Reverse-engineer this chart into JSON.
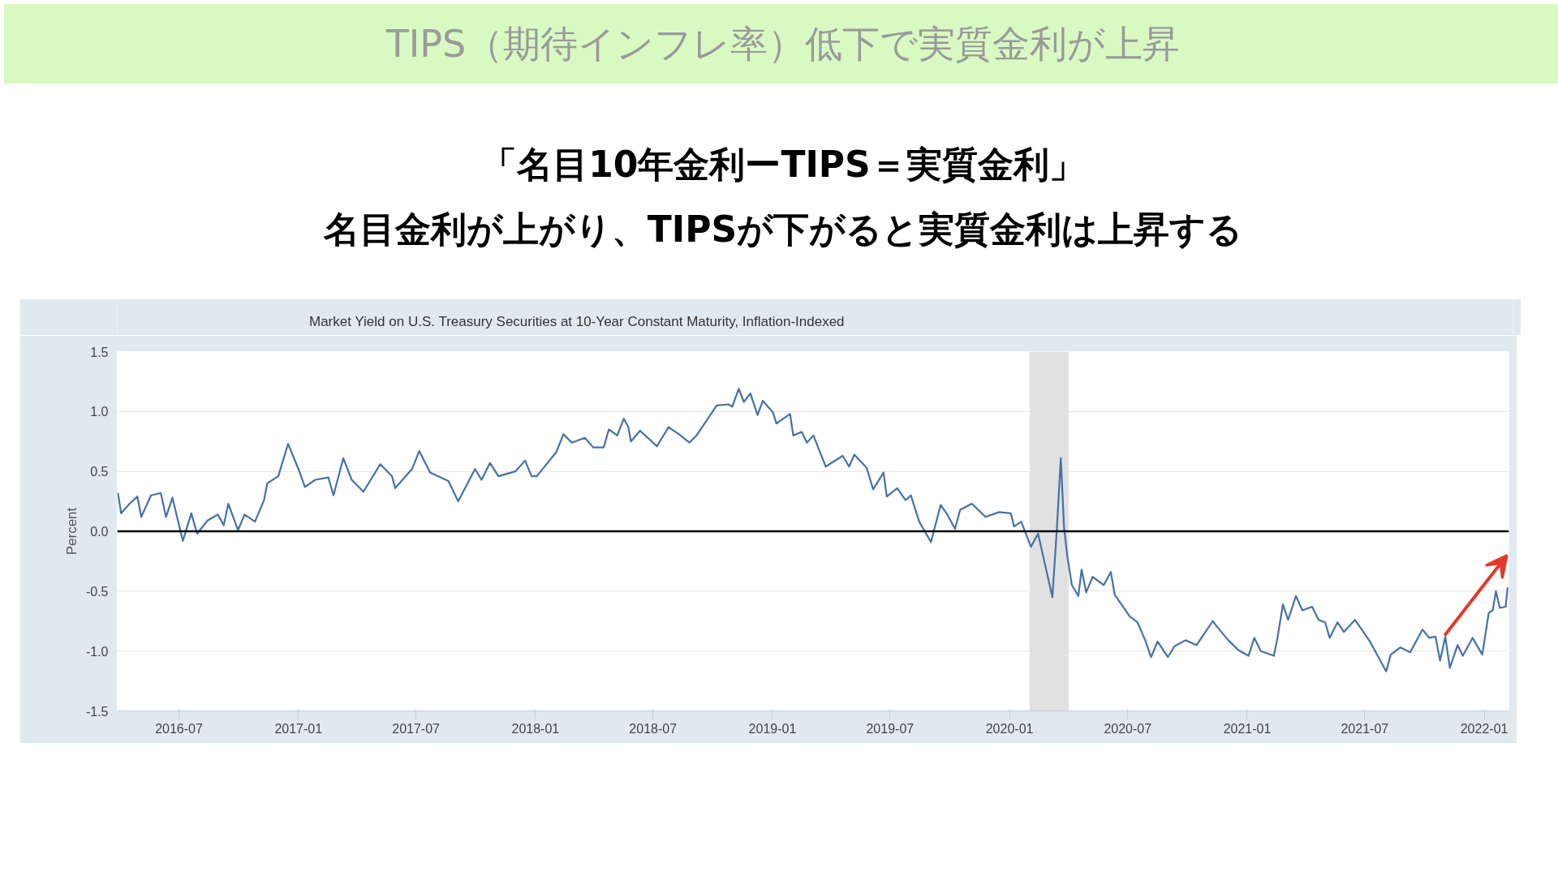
{
  "chart_data": {
    "type": "line",
    "title": "TIPS（期待インフレ率）低下で実質金利が上昇",
    "subtitle": "「名目10年金利ーTIPS＝実質金利」",
    "annotations": [
      "名目金利が上がり、TIPSが下がると実質金利は上昇する"
    ],
    "ylabel": "Percent",
    "x": [
      "2016-03-29",
      "2016-04-03",
      "2016-04-16",
      "2016-04-28",
      "2016-05-04",
      "2016-05-19",
      "2016-06-03",
      "2016-06-11",
      "2016-06-21",
      "2016-07-07",
      "2016-07-20",
      "2016-07-29",
      "2016-08-14",
      "2016-08-30",
      "2016-09-08",
      "2016-09-15",
      "2016-09-30",
      "2016-10-10",
      "2016-10-26",
      "2016-11-09",
      "2016-11-14",
      "2016-12-01",
      "2016-12-16",
      "2017-01-01",
      "2017-01-11",
      "2017-01-27",
      "2017-02-16",
      "2017-02-24",
      "2017-03-11",
      "2017-03-24",
      "2017-04-11",
      "2017-05-07",
      "2017-05-25",
      "2017-05-30",
      "2017-06-25",
      "2017-07-06",
      "2017-07-23",
      "2017-08-20",
      "2017-09-04",
      "2017-09-30",
      "2017-10-10",
      "2017-10-23",
      "2017-11-05",
      "2017-12-01",
      "2017-12-16",
      "2017-12-26",
      "2018-01-03",
      "2018-02-02",
      "2018-02-13",
      "2018-02-26",
      "2018-03-18",
      "2018-03-31",
      "2018-04-16",
      "2018-04-24",
      "2018-05-07",
      "2018-05-17",
      "2018-05-24",
      "2018-05-28",
      "2018-06-11",
      "2018-07-07",
      "2018-07-25",
      "2018-08-10",
      "2018-08-26",
      "2018-09-06",
      "2018-09-21",
      "2018-10-07",
      "2018-10-25",
      "2018-10-31",
      "2018-11-10",
      "2018-11-18",
      "2018-11-28",
      "2018-12-09",
      "2018-12-17",
      "2019-01-02",
      "2019-01-07",
      "2019-01-28",
      "2019-02-02",
      "2019-02-15",
      "2019-02-23",
      "2019-03-05",
      "2019-03-24",
      "2019-04-19",
      "2019-04-29",
      "2019-05-07",
      "2019-05-26",
      "2019-06-05",
      "2019-06-21",
      "2019-06-26",
      "2019-07-12",
      "2019-07-25",
      "2019-08-02",
      "2019-08-15",
      "2019-09-02",
      "2019-09-17",
      "2019-09-26",
      "2019-10-09",
      "2019-10-17",
      "2019-11-04",
      "2019-11-25",
      "2019-12-16",
      "2020-01-03",
      "2020-01-08",
      "2020-01-19",
      "2020-02-03",
      "2020-02-14",
      "2020-03-07",
      "2020-03-14",
      "2020-03-20",
      "2020-03-25",
      "2020-03-30",
      "2020-04-06",
      "2020-04-16",
      "2020-04-21",
      "2020-04-28",
      "2020-05-08",
      "2020-05-25",
      "2020-06-05",
      "2020-06-11",
      "2020-06-24",
      "2020-07-04",
      "2020-07-16",
      "2020-07-28",
      "2020-08-06",
      "2020-08-16",
      "2020-09-01",
      "2020-09-11",
      "2020-09-28",
      "2020-10-15",
      "2020-10-25",
      "2020-11-09",
      "2020-11-16",
      "2020-12-03",
      "2020-12-18",
      "2021-01-03",
      "2021-01-12",
      "2021-01-22",
      "2021-02-11",
      "2021-02-16",
      "2021-02-25",
      "2021-03-05",
      "2021-03-17",
      "2021-03-27",
      "2021-04-11",
      "2021-04-21",
      "2021-05-01",
      "2021-05-08",
      "2021-05-20",
      "2021-05-30",
      "2021-06-16",
      "2021-06-29",
      "2021-07-09",
      "2021-07-21",
      "2021-08-03",
      "2021-08-10",
      "2021-08-25",
      "2021-09-09",
      "2021-09-28",
      "2021-10-08",
      "2021-10-18",
      "2021-10-25",
      "2021-11-02",
      "2021-11-09",
      "2021-11-21",
      "2021-11-29",
      "2021-12-14",
      "2021-12-29",
      "2022-01-08",
      "2022-01-14",
      "2022-01-19",
      "2022-01-25",
      "2022-02-03",
      "2022-02-06"
    ],
    "series": [
      {
        "name": "Market Yield on U.S. Treasury Securities at 10-Year Constant Maturity, Inflation-Indexed",
        "color": "#4572a7",
        "values": [
          0.32,
          0.15,
          0.23,
          0.29,
          0.12,
          0.3,
          0.32,
          0.12,
          0.28,
          -0.08,
          0.15,
          -0.02,
          0.09,
          0.14,
          0.05,
          0.23,
          0.01,
          0.14,
          0.08,
          0.26,
          0.4,
          0.46,
          0.73,
          0.52,
          0.37,
          0.43,
          0.45,
          0.3,
          0.61,
          0.43,
          0.33,
          0.56,
          0.46,
          0.36,
          0.52,
          0.67,
          0.49,
          0.42,
          0.25,
          0.52,
          0.43,
          0.57,
          0.46,
          0.5,
          0.59,
          0.46,
          0.46,
          0.66,
          0.81,
          0.74,
          0.78,
          0.7,
          0.7,
          0.85,
          0.8,
          0.94,
          0.87,
          0.75,
          0.84,
          0.71,
          0.87,
          0.81,
          0.74,
          0.8,
          0.92,
          1.05,
          1.06,
          1.04,
          1.19,
          1.08,
          1.15,
          0.97,
          1.09,
          0.99,
          0.9,
          0.98,
          0.8,
          0.83,
          0.74,
          0.8,
          0.54,
          0.63,
          0.54,
          0.64,
          0.53,
          0.35,
          0.49,
          0.29,
          0.36,
          0.26,
          0.3,
          0.08,
          -0.09,
          0.22,
          0.15,
          0.02,
          0.18,
          0.23,
          0.12,
          0.16,
          0.15,
          0.04,
          0.08,
          -0.13,
          -0.02,
          -0.55,
          0.03,
          0.61,
          0.03,
          -0.21,
          -0.45,
          -0.54,
          -0.32,
          -0.51,
          -0.38,
          -0.45,
          -0.34,
          -0.53,
          -0.63,
          -0.71,
          -0.76,
          -0.91,
          -1.05,
          -0.92,
          -1.05,
          -0.96,
          -0.91,
          -0.95,
          -0.87,
          -0.75,
          -0.8,
          -0.91,
          -0.99,
          -1.04,
          -0.89,
          -1.0,
          -1.04,
          -0.91,
          -0.61,
          -0.74,
          -0.54,
          -0.66,
          -0.63,
          -0.74,
          -0.76,
          -0.89,
          -0.76,
          -0.84,
          -0.74,
          -0.84,
          -0.92,
          -1.04,
          -1.17,
          -1.03,
          -0.97,
          -1.01,
          -0.82,
          -0.89,
          -0.88,
          -1.08,
          -0.88,
          -1.14,
          -0.95,
          -1.04,
          -0.89,
          -1.03,
          -0.68,
          -0.66,
          -0.5,
          -0.64,
          -0.63,
          -0.47
        ]
      }
    ],
    "xlim": [
      "2016-03-28",
      "2022-02-08"
    ],
    "xticks": [
      "2016-07",
      "2017-01",
      "2017-07",
      "2018-01",
      "2018-07",
      "2019-01",
      "2019-07",
      "2020-01",
      "2020-07",
      "2021-01",
      "2021-07",
      "2022-01"
    ],
    "ylim": [
      -1.5,
      1.5
    ],
    "yticks": [
      {
        "value": 1.5,
        "label": "1.5"
      },
      {
        "value": 1,
        "label": "1.0"
      },
      {
        "value": 0.5,
        "label": "0.5"
      },
      {
        "value": 0,
        "label": "0.0"
      },
      {
        "value": -0.5,
        "label": "-0.5"
      },
      {
        "value": -1,
        "label": "-1.0"
      },
      {
        "value": -1.5,
        "label": "-1.5"
      }
    ],
    "ref_lines": [
      {
        "axis": "y",
        "value": 0,
        "color": "#000000"
      }
    ],
    "bands": [
      {
        "axis": "x",
        "from": "2020-02-01",
        "to": "2020-04-01",
        "color": "#e1e1e1"
      }
    ],
    "grid": "y",
    "legend": "top left",
    "marker": "none",
    "line_style": "solid"
  }
}
